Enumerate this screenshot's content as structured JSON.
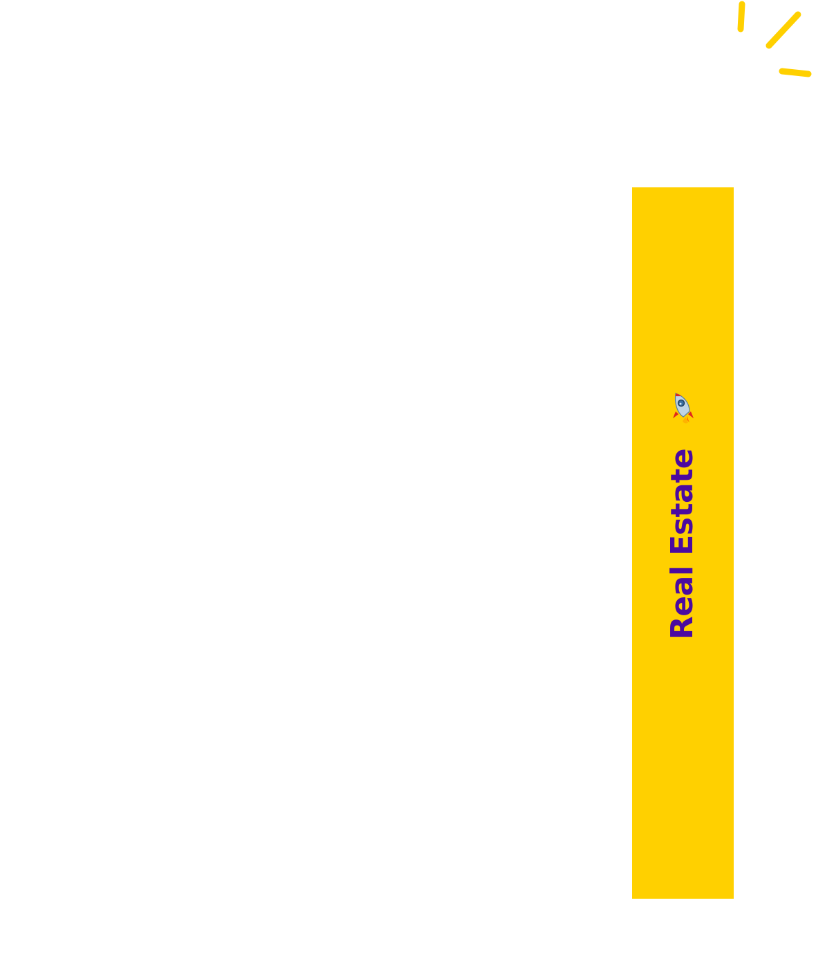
{
  "banner": {
    "label": "Real Estate",
    "icon": "rocket-icon",
    "background_color": "#FFD000",
    "text_color": "#4B0AA0"
  },
  "decoration": {
    "icon": "sparkle-icon",
    "color": "#FFD000"
  }
}
